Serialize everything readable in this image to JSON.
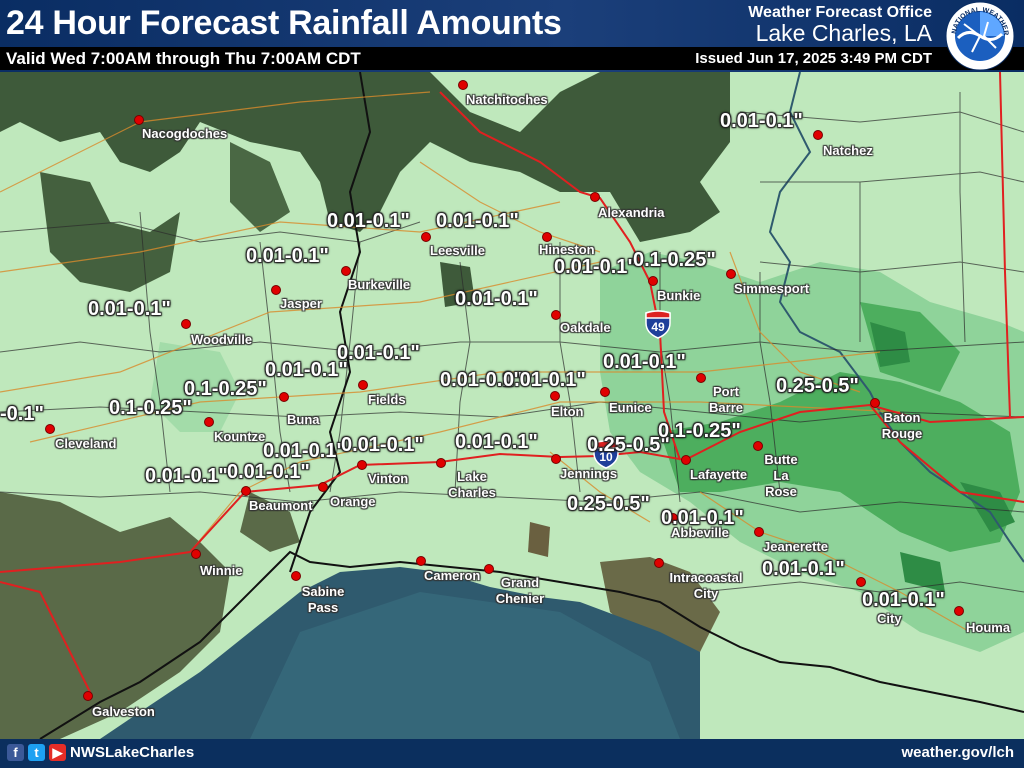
{
  "header": {
    "title": "24 Hour Forecast Rainfall Amounts",
    "valid": "Valid Wed 7:00AM through Thu 7:00AM CDT",
    "office_line1": "Weather Forecast Office",
    "office_line2": "Lake Charles, LA",
    "issued": "Issued Jun 17, 2025 3:49 PM CDT",
    "logo_icon": "nws-logo-icon",
    "logo_text": "NATIONAL WEATHER SERVICE"
  },
  "colors": {
    "header_bg": "#0a2d63",
    "land_light": "#bfe8bc",
    "rain_010_025": "#8fd39a",
    "rain_025_050": "#4dae5e",
    "rain_heavy": "#2e8c45",
    "forest": "#3e5a3a",
    "water": "#2f5a6e",
    "city_dot": "#e00000",
    "interstate": "#e02020"
  },
  "cities": [
    {
      "name": "Natchitoches"
    },
    {
      "name": "Nacogdoches"
    },
    {
      "name": "Natchez"
    },
    {
      "name": "Alexandria"
    },
    {
      "name": "Leesville"
    },
    {
      "name": "Hineston"
    },
    {
      "name": "Burkeville"
    },
    {
      "name": "Jasper"
    },
    {
      "name": "Bunkie"
    },
    {
      "name": "Simmesport"
    },
    {
      "name": "Oakdale"
    },
    {
      "name": "Woodville"
    },
    {
      "name": "Fields"
    },
    {
      "name": "Buna"
    },
    {
      "name": "Elton"
    },
    {
      "name": "Eunice"
    },
    {
      "name": "Port Barre"
    },
    {
      "name": "Baton Rouge"
    },
    {
      "name": "Cleveland"
    },
    {
      "name": "Kountze"
    },
    {
      "name": "Vinton"
    },
    {
      "name": "Lake Charles"
    },
    {
      "name": "Jennings"
    },
    {
      "name": "Lafayette"
    },
    {
      "name": "Butte La Rose"
    },
    {
      "name": "Beaumont"
    },
    {
      "name": "Orange"
    },
    {
      "name": "Abbeville"
    },
    {
      "name": "Jeanerette"
    },
    {
      "name": "Winnie"
    },
    {
      "name": "Sabine Pass"
    },
    {
      "name": "Cameron"
    },
    {
      "name": "Grand Chenier"
    },
    {
      "name": "Intracoastal City"
    },
    {
      "name": "City"
    },
    {
      "name": "Houma"
    },
    {
      "name": "Galveston"
    }
  ],
  "amounts": [
    {
      "label": "0.01-0.1\""
    },
    {
      "label": "0.01-0.1\""
    },
    {
      "label": "0.01-0.1\""
    },
    {
      "label": "0.01-0.1\""
    },
    {
      "label": "0.01-0.1\""
    },
    {
      "label": "0.1-0.25\""
    },
    {
      "label": "0.01-0.1\""
    },
    {
      "label": "0.01-0.1\""
    },
    {
      "label": "0.01-0.1\""
    },
    {
      "label": "0.01-0.1\""
    },
    {
      "label": "0.01-0.1\""
    },
    {
      "label": "0.01-0.1\""
    },
    {
      "label": "0.01-0.1\""
    },
    {
      "label": "0.1-0.25\""
    },
    {
      "label": "0.25-0.5\""
    },
    {
      "label": "-0.1\""
    },
    {
      "label": "0.1-0.25\""
    },
    {
      "label": "0.01-0.1\""
    },
    {
      "label": "0.01-0.1\""
    },
    {
      "label": "0.01-0.1\""
    },
    {
      "label": "0.25-0.5\""
    },
    {
      "label": "0.1-0.25\""
    },
    {
      "label": "0.01-0.1\""
    },
    {
      "label": "0.01-0.1\""
    },
    {
      "label": "0.25-0.5\""
    },
    {
      "label": "0.01-0.1\""
    },
    {
      "label": "0.01-0.1\""
    },
    {
      "label": "0.01-0.1\""
    }
  ],
  "shields": [
    {
      "number": "49",
      "icon": "interstate-49-shield-icon"
    },
    {
      "number": "10",
      "icon": "interstate-10-shield-icon"
    }
  ],
  "footer": {
    "handle": "NWSLakeCharles",
    "website": "weather.gov/lch",
    "icons": [
      "facebook-icon",
      "twitter-icon",
      "youtube-icon"
    ]
  }
}
